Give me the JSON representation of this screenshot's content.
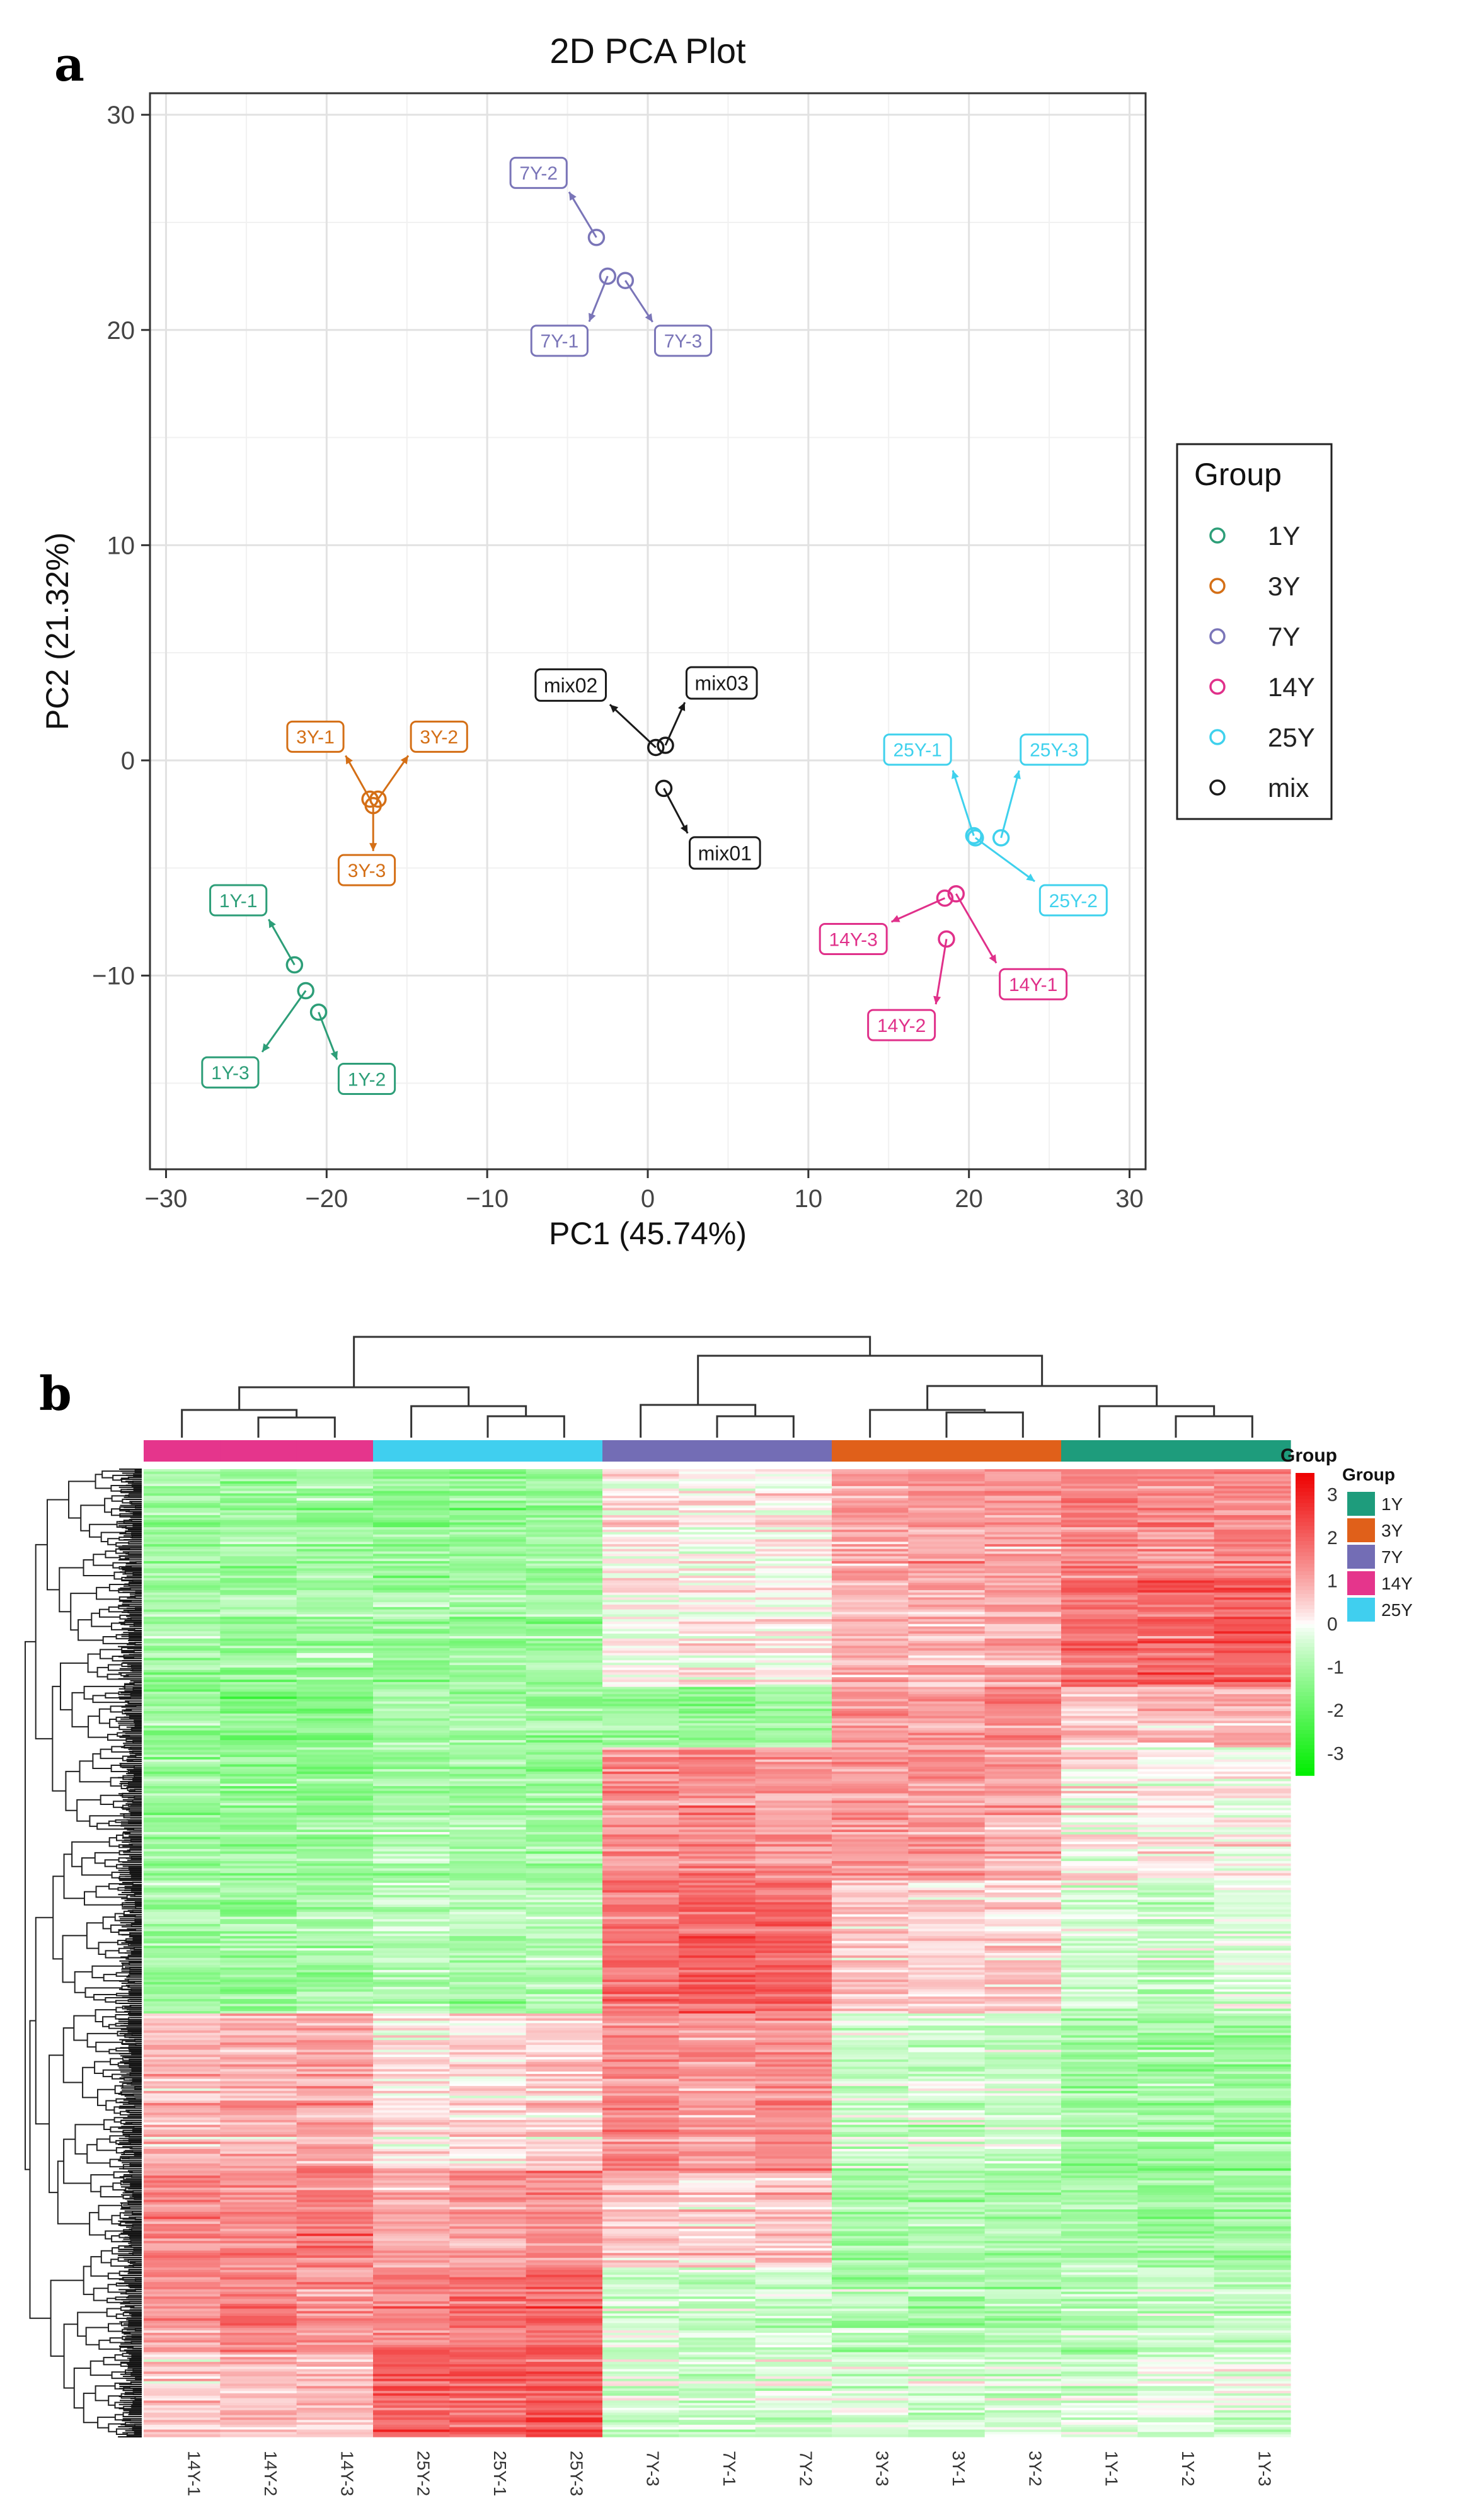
{
  "panel_labels": {
    "a": "a",
    "b": "b"
  },
  "chart_data": [
    {
      "type": "scatter",
      "title": "2D PCA Plot",
      "xlabel": "PC1 (45.74%)",
      "ylabel": "PC2 (21.32%)",
      "xlim": [
        -31,
        31
      ],
      "ylim": [
        -19,
        31
      ],
      "xticks": [
        -30,
        -20,
        -10,
        0,
        10,
        20,
        30
      ],
      "yticks": [
        -10,
        0,
        10,
        20,
        30
      ],
      "xtick_labels": [
        "−30",
        "−20",
        "−10",
        "0",
        "10",
        "20",
        "30"
      ],
      "ytick_labels": [
        "−10",
        "0",
        "10",
        "20",
        "30"
      ],
      "grid": true,
      "legend": {
        "title": "Group",
        "position": "right",
        "entries": [
          {
            "name": "1Y",
            "color": "#2d9e78"
          },
          {
            "name": "3Y",
            "color": "#d46f16"
          },
          {
            "name": "7Y",
            "color": "#7a75b8"
          },
          {
            "name": "14Y",
            "color": "#e0308a"
          },
          {
            "name": "25Y",
            "color": "#3fd1ed"
          },
          {
            "name": "mix",
            "color": "#1a1a1a"
          }
        ]
      },
      "points": [
        {
          "label": "1Y-1",
          "group": "1Y",
          "x": -22.0,
          "y": -9.5,
          "lx": -25.5,
          "ly": -6.5
        },
        {
          "label": "1Y-2",
          "group": "1Y",
          "x": -20.5,
          "y": -11.7,
          "lx": -17.5,
          "ly": -14.8
        },
        {
          "label": "1Y-3",
          "group": "1Y",
          "x": -21.3,
          "y": -10.7,
          "lx": -26.0,
          "ly": -14.5
        },
        {
          "label": "3Y-1",
          "group": "3Y",
          "x": -17.3,
          "y": -1.8,
          "lx": -20.7,
          "ly": 1.1
        },
        {
          "label": "3Y-2",
          "group": "3Y",
          "x": -16.8,
          "y": -1.8,
          "lx": -13.0,
          "ly": 1.1
        },
        {
          "label": "3Y-3",
          "group": "3Y",
          "x": -17.1,
          "y": -2.1,
          "lx": -17.5,
          "ly": -5.1
        },
        {
          "label": "7Y-1",
          "group": "7Y",
          "x": -2.5,
          "y": 22.5,
          "lx": -5.5,
          "ly": 19.5
        },
        {
          "label": "7Y-2",
          "group": "7Y",
          "x": -3.2,
          "y": 24.3,
          "lx": -6.8,
          "ly": 27.3
        },
        {
          "label": "7Y-3",
          "group": "7Y",
          "x": -1.4,
          "y": 22.3,
          "lx": 2.2,
          "ly": 19.5
        },
        {
          "label": "14Y-1",
          "group": "14Y",
          "x": 19.2,
          "y": -6.2,
          "lx": 24.0,
          "ly": -10.4
        },
        {
          "label": "14Y-2",
          "group": "14Y",
          "x": 18.6,
          "y": -8.3,
          "lx": 15.8,
          "ly": -12.3
        },
        {
          "label": "14Y-3",
          "group": "14Y",
          "x": 18.5,
          "y": -6.4,
          "lx": 12.8,
          "ly": -8.3
        },
        {
          "label": "25Y-1",
          "group": "25Y",
          "x": 20.3,
          "y": -3.5,
          "lx": 16.8,
          "ly": 0.5
        },
        {
          "label": "25Y-2",
          "group": "25Y",
          "x": 20.4,
          "y": -3.6,
          "lx": 26.5,
          "ly": -6.5
        },
        {
          "label": "25Y-3",
          "group": "25Y",
          "x": 22.0,
          "y": -3.6,
          "lx": 25.3,
          "ly": 0.5
        },
        {
          "label": "mix01",
          "group": "mix",
          "x": 1.0,
          "y": -1.3,
          "lx": 4.8,
          "ly": -4.3
        },
        {
          "label": "mix02",
          "group": "mix",
          "x": 0.5,
          "y": 0.6,
          "lx": -4.8,
          "ly": 3.5
        },
        {
          "label": "mix03",
          "group": "mix",
          "x": 1.1,
          "y": 0.7,
          "lx": 4.6,
          "ly": 3.6
        }
      ]
    },
    {
      "type": "heatmap",
      "columns": [
        "14Y-1",
        "14Y-2",
        "14Y-3",
        "25Y-2",
        "25Y-1",
        "25Y-3",
        "7Y-3",
        "7Y-1",
        "7Y-2",
        "3Y-3",
        "3Y-1",
        "3Y-2",
        "1Y-1",
        "1Y-2",
        "1Y-3"
      ],
      "column_groups": [
        "14Y",
        "14Y",
        "14Y",
        "25Y",
        "25Y",
        "25Y",
        "7Y",
        "7Y",
        "7Y",
        "3Y",
        "3Y",
        "3Y",
        "1Y",
        "1Y",
        "1Y"
      ],
      "annotation_title": "Group",
      "group_legend_title": "Group",
      "group_legend": [
        {
          "name": "1Y",
          "color": "#1e9c7c"
        },
        {
          "name": "3Y",
          "color": "#e0601a"
        },
        {
          "name": "7Y",
          "color": "#736db5"
        },
        {
          "name": "14Y",
          "color": "#e5358c"
        },
        {
          "name": "25Y",
          "color": "#40cfef"
        }
      ],
      "color_scale": {
        "min": -3.5,
        "max": 3.5,
        "low": "#00ee00",
        "mid": "#ffffff",
        "high": "#ee0000",
        "ticks": [
          3,
          2,
          1,
          0,
          -1,
          -2,
          -3
        ],
        "tick_labels": [
          "3",
          "2",
          "1",
          "0",
          "-1",
          "-2",
          "-3"
        ]
      },
      "row_blocks": [
        {
          "rows": 45,
          "values": [
            -1.2,
            -1.2,
            -1.1,
            -1.3,
            -1.3,
            -1.2,
            0.2,
            0.1,
            0.2,
            1.1,
            1.2,
            1.1,
            1.5,
            1.4,
            1.5
          ]
        },
        {
          "rows": 45,
          "values": [
            -1.0,
            -1.1,
            -1.0,
            -1.1,
            -1.2,
            -1.1,
            0.0,
            0.1,
            0.0,
            0.9,
            0.8,
            0.9,
            1.8,
            1.9,
            2.0
          ]
        },
        {
          "rows": 25,
          "values": [
            -1.3,
            -1.5,
            -1.4,
            -1.0,
            -1.1,
            -1.2,
            -1.2,
            -1.3,
            -1.1,
            1.3,
            1.2,
            1.5,
            0.6,
            0.7,
            0.9
          ]
        },
        {
          "rows": 55,
          "values": [
            -1.2,
            -1.3,
            -1.3,
            -1.0,
            -1.1,
            -1.2,
            1.3,
            1.4,
            1.2,
            1.2,
            1.3,
            1.1,
            0.2,
            0.1,
            0.1
          ]
        },
        {
          "rows": 55,
          "values": [
            -1.0,
            -1.1,
            -1.0,
            -0.7,
            -0.9,
            -0.8,
            1.7,
            2.0,
            1.9,
            0.6,
            0.4,
            0.5,
            -0.4,
            -0.5,
            -0.3
          ]
        },
        {
          "rows": 65,
          "values": [
            0.8,
            0.9,
            1.0,
            0.3,
            0.4,
            0.5,
            1.5,
            1.2,
            1.4,
            -0.6,
            -0.5,
            -0.6,
            -1.1,
            -1.2,
            -1.1
          ]
        },
        {
          "rows": 40,
          "values": [
            1.4,
            1.5,
            1.6,
            1.0,
            1.2,
            1.3,
            0.6,
            0.5,
            0.6,
            -1.0,
            -1.0,
            -0.9,
            -1.0,
            -1.1,
            -1.1
          ]
        },
        {
          "rows": 35,
          "values": [
            1.2,
            1.6,
            1.4,
            1.6,
            1.8,
            1.9,
            -0.5,
            -0.6,
            -0.5,
            -0.9,
            -1.0,
            -0.8,
            -0.8,
            -0.6,
            -0.7
          ]
        },
        {
          "rows": 35,
          "values": [
            0.6,
            0.7,
            0.6,
            2.0,
            1.9,
            2.1,
            -0.5,
            -0.6,
            -0.4,
            -0.4,
            -0.5,
            -0.4,
            -0.3,
            -0.2,
            -0.3
          ]
        }
      ]
    }
  ]
}
